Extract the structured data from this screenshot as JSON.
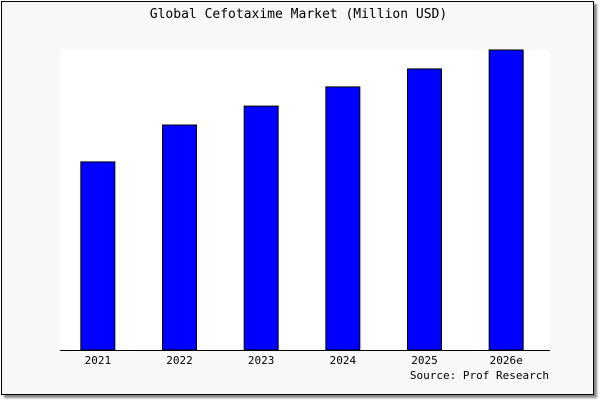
{
  "chart_data": {
    "type": "bar",
    "title": "Global Cefotaxime Market (Million USD)",
    "categories": [
      "2021",
      "2022",
      "2023",
      "2024",
      "2025",
      "2026e"
    ],
    "values": [
      62.7,
      75.0,
      81.3,
      87.7,
      93.7,
      100.0
    ],
    "xlabel": "",
    "ylabel": "",
    "ylim": [
      0,
      100
    ],
    "grid": false,
    "bar_color": "#0000ff",
    "source": "Source: Prof Research"
  }
}
